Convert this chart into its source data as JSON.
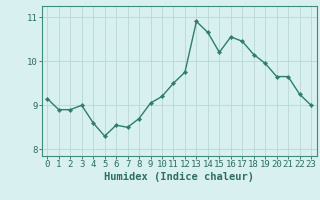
{
  "x": [
    0,
    1,
    2,
    3,
    4,
    5,
    6,
    7,
    8,
    9,
    10,
    11,
    12,
    13,
    14,
    15,
    16,
    17,
    18,
    19,
    20,
    21,
    22,
    23
  ],
  "y": [
    9.15,
    8.9,
    8.9,
    9.0,
    8.6,
    8.3,
    8.55,
    8.5,
    8.7,
    9.05,
    9.2,
    9.5,
    9.75,
    10.9,
    10.65,
    10.2,
    10.55,
    10.45,
    10.15,
    9.95,
    9.65,
    9.65,
    9.25,
    9.0
  ],
  "line_color": "#2e7d6e",
  "marker": "D",
  "marker_size": 2.2,
  "bg_color": "#d9f0f0",
  "grid_color": "#b8d8d8",
  "axis_color": "#3d8c7c",
  "xlabel": "Humidex (Indice chaleur)",
  "ylim": [
    7.85,
    11.25
  ],
  "yticks": [
    8,
    9,
    10,
    11
  ],
  "xticks": [
    0,
    1,
    2,
    3,
    4,
    5,
    6,
    7,
    8,
    9,
    10,
    11,
    12,
    13,
    14,
    15,
    16,
    17,
    18,
    19,
    20,
    21,
    22,
    23
  ],
  "font_color": "#2e6e60",
  "xlabel_fontsize": 7.5,
  "tick_fontsize": 6.5,
  "line_width": 1.0
}
